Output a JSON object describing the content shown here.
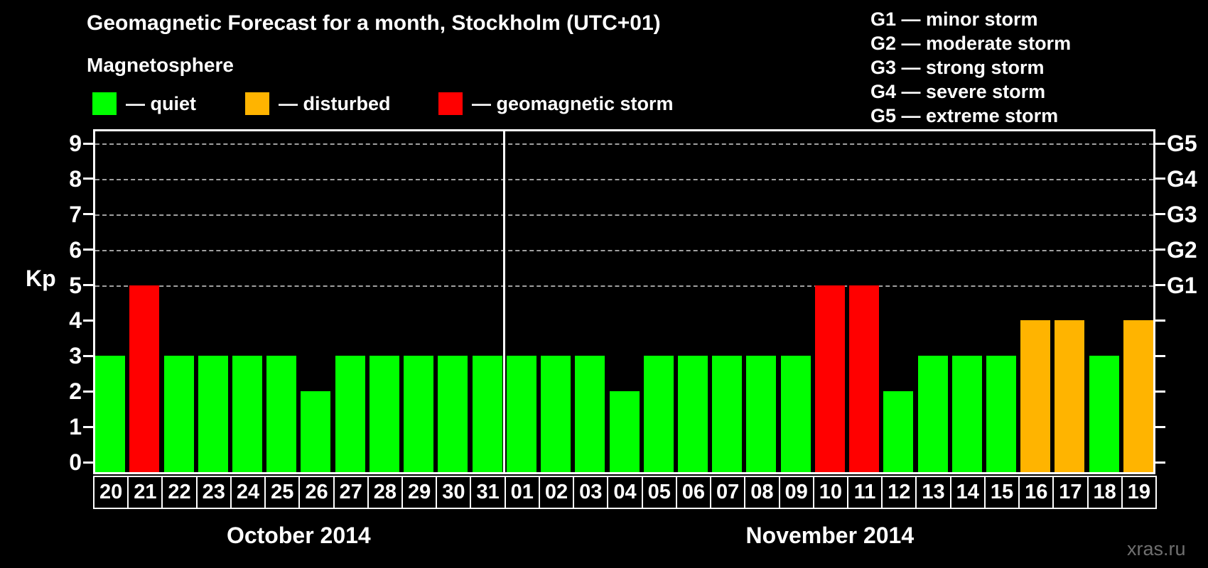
{
  "title": "Geomagnetic Forecast for a month, Stockholm (UTC+01)",
  "legend": {
    "title": "Magnetosphere",
    "items": [
      {
        "label": "— quiet",
        "status": "quiet"
      },
      {
        "label": "— disturbed",
        "status": "disturbed"
      },
      {
        "label": "— geomagnetic storm",
        "status": "storm"
      }
    ]
  },
  "storm_scale_legend": [
    "G1 — minor storm",
    "G2 — moderate storm",
    "G3 — strong storm",
    "G4 — severe storm",
    "G5 — extreme storm"
  ],
  "watermark": "xras.ru",
  "colors": {
    "quiet": "#00ff00",
    "disturbed": "#ffb400",
    "storm": "#ff0000",
    "axis": "#ffffff",
    "grid": "#a0a0a0",
    "background": "#000000",
    "text": "#ffffff",
    "watermark": "#6f6f6f"
  },
  "chart_data": {
    "type": "bar",
    "title": "Geomagnetic Forecast for a month, Stockholm (UTC+01)",
    "ylabel": "Kp",
    "ylim": [
      0,
      9
    ],
    "yticks": [
      0,
      1,
      2,
      3,
      4,
      5,
      6,
      7,
      8,
      9
    ],
    "grid_levels": [
      5,
      6,
      7,
      8,
      9
    ],
    "grid": "horizontal dashed lines at Kp 5-9 only",
    "right_axis_labels": [
      {
        "value": 5,
        "label": "G1"
      },
      {
        "value": 6,
        "label": "G2"
      },
      {
        "value": 7,
        "label": "G3"
      },
      {
        "value": 8,
        "label": "G4"
      },
      {
        "value": 9,
        "label": "G5"
      }
    ],
    "legend_position": "top-left and top-right, outside plot",
    "months": [
      {
        "label": "October 2014",
        "days": [
          {
            "day": "20",
            "kp": 3,
            "status": "quiet"
          },
          {
            "day": "21",
            "kp": 5,
            "status": "storm"
          },
          {
            "day": "22",
            "kp": 3,
            "status": "quiet"
          },
          {
            "day": "23",
            "kp": 3,
            "status": "quiet"
          },
          {
            "day": "24",
            "kp": 3,
            "status": "quiet"
          },
          {
            "day": "25",
            "kp": 3,
            "status": "quiet"
          },
          {
            "day": "26",
            "kp": 2,
            "status": "quiet"
          },
          {
            "day": "27",
            "kp": 3,
            "status": "quiet"
          },
          {
            "day": "28",
            "kp": 3,
            "status": "quiet"
          },
          {
            "day": "29",
            "kp": 3,
            "status": "quiet"
          },
          {
            "day": "30",
            "kp": 3,
            "status": "quiet"
          },
          {
            "day": "31",
            "kp": 3,
            "status": "quiet"
          }
        ]
      },
      {
        "label": "November 2014",
        "days": [
          {
            "day": "01",
            "kp": 3,
            "status": "quiet"
          },
          {
            "day": "02",
            "kp": 3,
            "status": "quiet"
          },
          {
            "day": "03",
            "kp": 3,
            "status": "quiet"
          },
          {
            "day": "04",
            "kp": 2,
            "status": "quiet"
          },
          {
            "day": "05",
            "kp": 3,
            "status": "quiet"
          },
          {
            "day": "06",
            "kp": 3,
            "status": "quiet"
          },
          {
            "day": "07",
            "kp": 3,
            "status": "quiet"
          },
          {
            "day": "08",
            "kp": 3,
            "status": "quiet"
          },
          {
            "day": "09",
            "kp": 3,
            "status": "quiet"
          },
          {
            "day": "10",
            "kp": 5,
            "status": "storm"
          },
          {
            "day": "11",
            "kp": 5,
            "status": "storm"
          },
          {
            "day": "12",
            "kp": 2,
            "status": "quiet"
          },
          {
            "day": "13",
            "kp": 3,
            "status": "quiet"
          },
          {
            "day": "14",
            "kp": 3,
            "status": "quiet"
          },
          {
            "day": "15",
            "kp": 3,
            "status": "quiet"
          },
          {
            "day": "16",
            "kp": 4,
            "status": "disturbed"
          },
          {
            "day": "17",
            "kp": 4,
            "status": "disturbed"
          },
          {
            "day": "18",
            "kp": 3,
            "status": "quiet"
          },
          {
            "day": "19",
            "kp": 4,
            "status": "disturbed"
          }
        ]
      }
    ]
  }
}
